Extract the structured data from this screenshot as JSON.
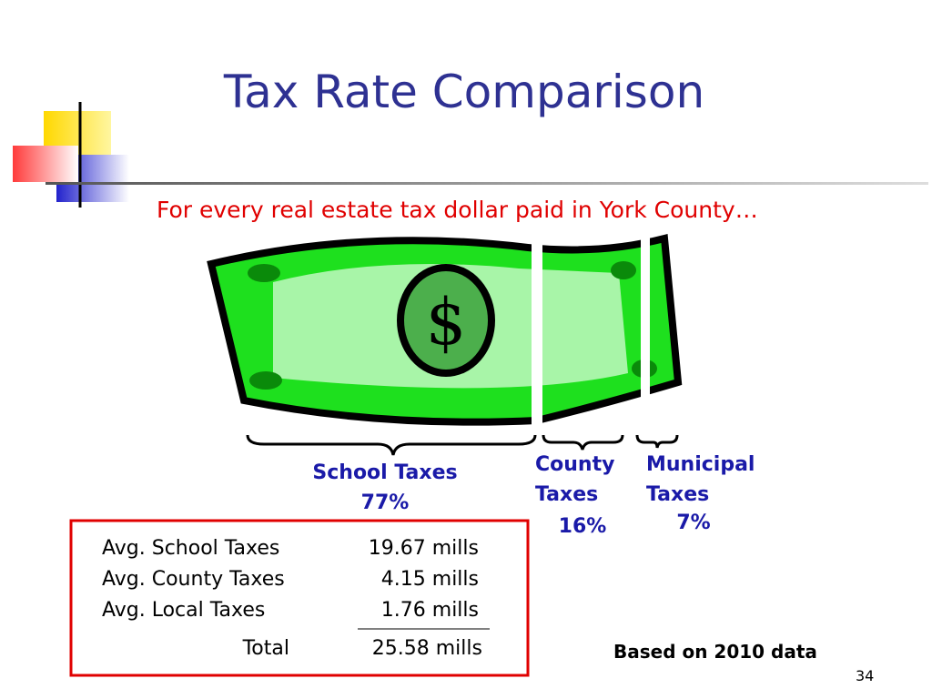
{
  "header": {
    "title": "Tax Rate Comparison",
    "subtitle": "For every real estate tax dollar paid in York County…"
  },
  "shares": [
    {
      "label": "School Taxes",
      "percent": "77%"
    },
    {
      "label": "County Taxes",
      "percent": "16%"
    },
    {
      "label": "Municipal Taxes",
      "percent": "7%"
    }
  ],
  "table": {
    "rows": [
      [
        "Avg. School Taxes",
        "19.67 mills"
      ],
      [
        "Avg. County Taxes",
        "4.15 mills"
      ],
      [
        "Avg. Local Taxes",
        "1.76 mills"
      ]
    ],
    "total": [
      "Total",
      "25.58 mills"
    ]
  },
  "footnote": "Based on 2010 data",
  "page_number": "34"
}
